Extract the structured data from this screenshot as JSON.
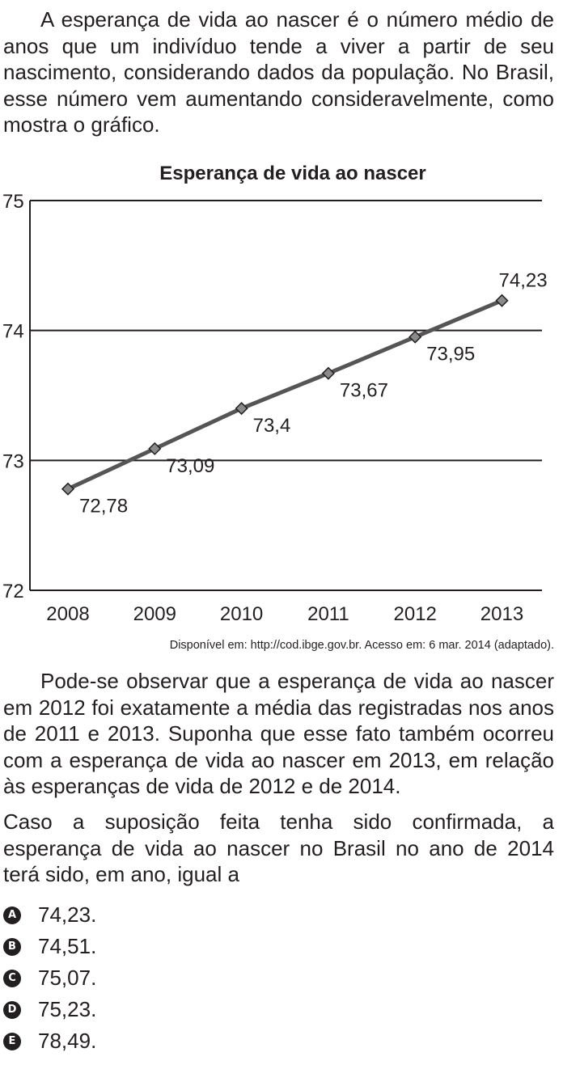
{
  "intro_text": "A esperança de vida ao nascer é o número médio de anos que um indivíduo tende a viver a partir de seu nascimento, considerando dados da população. No Brasil, esse número vem aumentando consideravelmente, como mostra o gráfico.",
  "chart_data": {
    "type": "line",
    "title": "Esperança de vida ao nascer",
    "xlabel": "",
    "ylabel": "",
    "x": [
      "2008",
      "2009",
      "2010",
      "2011",
      "2012",
      "2013"
    ],
    "y": [
      72.78,
      73.09,
      73.4,
      73.67,
      73.95,
      74.23
    ],
    "data_labels": [
      "72,78",
      "73,09",
      "73,4",
      "73,67",
      "73,95",
      "74,23"
    ],
    "yticks": [
      72,
      73,
      74,
      75
    ],
    "ylim": [
      72,
      75
    ],
    "grid": "horizontal",
    "legend": "none",
    "line_color": "#555555",
    "marker_color": "#8a8a8a"
  },
  "source_text": "Disponível em: http://cod.ibge.gov.br. Acesso em: 6 mar. 2014 (adaptado).",
  "para2": "Pode-se observar que a esperança de vida ao nascer em 2012 foi exatamente a média das registradas nos anos de 2011 e 2013. Suponha que esse fato também ocorreu com a esperança de vida ao nascer em 2013, em relação às esperanças de vida de 2012 e de 2014.",
  "para3": "Caso a suposição feita tenha sido confirmada, a esperança de vida ao nascer no Brasil no ano de 2014 terá sido, em ano, igual a",
  "options": [
    {
      "letter": "A",
      "text": "74,23."
    },
    {
      "letter": "B",
      "text": "74,51."
    },
    {
      "letter": "C",
      "text": "75,07."
    },
    {
      "letter": "D",
      "text": "75,23."
    },
    {
      "letter": "E",
      "text": "78,49."
    }
  ]
}
